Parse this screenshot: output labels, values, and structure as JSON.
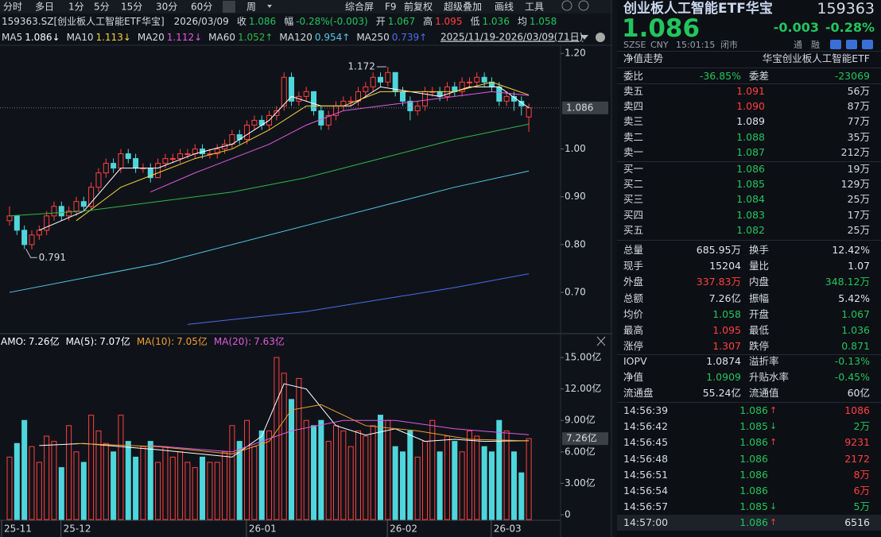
{
  "toolbar": {
    "periods": [
      "分时",
      "多日",
      "1分",
      "5分",
      "15分",
      "30分",
      "60分",
      "周"
    ],
    "tools": [
      "综合屏",
      "F9",
      "前复权",
      "超级叠加",
      "画线",
      "工具"
    ]
  },
  "header": {
    "code_name": "159363.SZ[创业板人工智能ETF华宝]",
    "date": "2026/03/09",
    "fields": [
      {
        "label": "收",
        "value": "1.086",
        "color": "#22c55e"
      },
      {
        "label": "幅",
        "value": "-0.28%(-0.003)",
        "color": "#22c55e"
      },
      {
        "label": "开",
        "value": "1.067",
        "color": "#22c55e"
      },
      {
        "label": "高",
        "value": "1.095",
        "color": "#ff4040"
      },
      {
        "label": "低",
        "value": "1.036",
        "color": "#22c55e"
      },
      {
        "label": "均",
        "value": "1.058",
        "color": "#22c55e"
      }
    ],
    "range_label": "2025/11/19-2026/03/09(71日)"
  },
  "kline": {
    "ylim": [
      0.617,
      1.212
    ],
    "yticks": [
      {
        "value": 0.7,
        "label": "0.70"
      },
      {
        "value": 0.8,
        "label": "0.80"
      },
      {
        "value": 0.9,
        "label": "0.90"
      },
      {
        "value": 1.0,
        "label": "1.00"
      },
      {
        "value": 1.2,
        "label": "1.20"
      }
    ],
    "candles": [
      [
        0.85,
        0.88,
        0.84,
        0.86
      ],
      [
        0.86,
        0.86,
        0.82,
        0.83
      ],
      [
        0.83,
        0.84,
        0.791,
        0.8
      ],
      [
        0.8,
        0.83,
        0.79,
        0.82
      ],
      [
        0.82,
        0.84,
        0.81,
        0.83
      ],
      [
        0.83,
        0.87,
        0.82,
        0.86
      ],
      [
        0.86,
        0.89,
        0.85,
        0.88
      ],
      [
        0.88,
        0.89,
        0.85,
        0.86
      ],
      [
        0.86,
        0.88,
        0.85,
        0.87
      ],
      [
        0.87,
        0.9,
        0.86,
        0.89
      ],
      [
        0.89,
        0.9,
        0.87,
        0.88
      ],
      [
        0.88,
        0.93,
        0.87,
        0.92
      ],
      [
        0.92,
        0.96,
        0.91,
        0.95
      ],
      [
        0.95,
        0.98,
        0.94,
        0.97
      ],
      [
        0.97,
        0.98,
        0.95,
        0.96
      ],
      [
        0.96,
        1.0,
        0.95,
        0.99
      ],
      [
        0.99,
        1.0,
        0.97,
        0.98
      ],
      [
        0.98,
        0.99,
        0.95,
        0.96
      ],
      [
        0.96,
        0.97,
        0.95,
        0.96
      ],
      [
        0.96,
        0.97,
        0.93,
        0.94
      ],
      [
        0.94,
        0.98,
        0.94,
        0.97
      ],
      [
        0.97,
        0.99,
        0.96,
        0.98
      ],
      [
        0.98,
        0.99,
        0.97,
        0.98
      ],
      [
        0.98,
        1.0,
        0.97,
        0.99
      ],
      [
        0.99,
        1.0,
        0.98,
        0.99
      ],
      [
        0.99,
        1.01,
        0.98,
        1.0
      ],
      [
        1.0,
        1.01,
        0.98,
        0.99
      ],
      [
        0.99,
        1.0,
        0.98,
        0.99
      ],
      [
        0.99,
        1.01,
        0.98,
        1.0
      ],
      [
        1.0,
        1.02,
        0.99,
        1.01
      ],
      [
        1.01,
        1.04,
        1.0,
        1.03
      ],
      [
        1.03,
        1.04,
        1.01,
        1.02
      ],
      [
        1.02,
        1.06,
        1.01,
        1.05
      ],
      [
        1.05,
        1.07,
        1.04,
        1.06
      ],
      [
        1.06,
        1.07,
        1.04,
        1.05
      ],
      [
        1.05,
        1.08,
        1.04,
        1.07
      ],
      [
        1.07,
        1.09,
        1.06,
        1.08
      ],
      [
        1.09,
        1.16,
        1.08,
        1.15
      ],
      [
        1.15,
        1.16,
        1.09,
        1.1
      ],
      [
        1.1,
        1.12,
        1.09,
        1.11
      ],
      [
        1.11,
        1.13,
        1.1,
        1.12
      ],
      [
        1.12,
        1.12,
        1.07,
        1.08
      ],
      [
        1.08,
        1.09,
        1.04,
        1.05
      ],
      [
        1.05,
        1.08,
        1.04,
        1.07
      ],
      [
        1.07,
        1.1,
        1.06,
        1.09
      ],
      [
        1.09,
        1.11,
        1.08,
        1.1
      ],
      [
        1.1,
        1.11,
        1.09,
        1.1
      ],
      [
        1.1,
        1.13,
        1.09,
        1.12
      ],
      [
        1.12,
        1.14,
        1.11,
        1.13
      ],
      [
        1.13,
        1.16,
        1.12,
        1.15
      ],
      [
        1.15,
        1.16,
        1.13,
        1.14
      ],
      [
        1.14,
        1.172,
        1.13,
        1.16
      ],
      [
        1.16,
        1.16,
        1.11,
        1.12
      ],
      [
        1.12,
        1.13,
        1.09,
        1.1
      ],
      [
        1.1,
        1.11,
        1.06,
        1.08
      ],
      [
        1.08,
        1.1,
        1.07,
        1.09
      ],
      [
        1.09,
        1.13,
        1.08,
        1.12
      ],
      [
        1.12,
        1.13,
        1.11,
        1.12
      ],
      [
        1.12,
        1.13,
        1.1,
        1.11
      ],
      [
        1.11,
        1.14,
        1.1,
        1.13
      ],
      [
        1.13,
        1.14,
        1.11,
        1.12
      ],
      [
        1.12,
        1.15,
        1.11,
        1.14
      ],
      [
        1.14,
        1.15,
        1.13,
        1.14
      ],
      [
        1.14,
        1.16,
        1.13,
        1.15
      ],
      [
        1.15,
        1.16,
        1.13,
        1.14
      ],
      [
        1.14,
        1.15,
        1.12,
        1.13
      ],
      [
        1.13,
        1.14,
        1.09,
        1.1
      ],
      [
        1.1,
        1.12,
        1.09,
        1.11
      ],
      [
        1.11,
        1.12,
        1.08,
        1.1
      ],
      [
        1.1,
        1.11,
        1.07,
        1.09
      ],
      [
        1.067,
        1.095,
        1.036,
        1.086
      ]
    ],
    "up_color": "#ff4040",
    "down_color": "#4fd6dc",
    "ma": [
      {
        "name": "MA5",
        "label": "1.086↓",
        "color": "#ffffff",
        "x": [
          4,
          10,
          15,
          20,
          25,
          30,
          35,
          38,
          42,
          46,
          50,
          54,
          58,
          62,
          66,
          70
        ],
        "values": [
          0.83,
          0.87,
          0.96,
          0.96,
          0.99,
          1.01,
          1.06,
          1.11,
          1.09,
          1.09,
          1.13,
          1.12,
          1.11,
          1.13,
          1.13,
          1.086
        ]
      },
      {
        "name": "MA10",
        "label": "1.113↓",
        "color": "#f5d33a",
        "x": [
          9,
          15,
          20,
          25,
          30,
          35,
          40,
          45,
          50,
          55,
          60,
          65,
          70
        ],
        "values": [
          0.85,
          0.92,
          0.95,
          0.98,
          1.0,
          1.04,
          1.09,
          1.09,
          1.12,
          1.12,
          1.12,
          1.14,
          1.113
        ]
      },
      {
        "name": "MA20",
        "label": "1.112↓",
        "color": "#e05ae0",
        "x": [
          19,
          25,
          30,
          35,
          40,
          45,
          50,
          55,
          60,
          65,
          70
        ],
        "values": [
          0.91,
          0.95,
          0.98,
          1.01,
          1.05,
          1.08,
          1.09,
          1.1,
          1.11,
          1.12,
          1.112
        ]
      },
      {
        "name": "MA60",
        "label": "1.052↑",
        "color": "#2fb84a",
        "x": [
          0,
          10,
          20,
          30,
          40,
          50,
          60,
          70
        ],
        "values": [
          0.86,
          0.87,
          0.89,
          0.91,
          0.94,
          0.98,
          1.02,
          1.052
        ]
      },
      {
        "name": "MA120",
        "label": "0.954↑",
        "color": "#55c8e8",
        "x": [
          0,
          20,
          40,
          60,
          70
        ],
        "values": [
          0.7,
          0.76,
          0.84,
          0.92,
          0.954
        ]
      },
      {
        "name": "MA250",
        "label": "0.739↑",
        "color": "#4a6df0",
        "x": [
          24,
          40,
          60,
          70
        ],
        "values": [
          0.633,
          0.66,
          0.71,
          0.739
        ]
      }
    ],
    "high_mark": [
      51,
      1
    ],
    "low_mark": [
      2,
      2
    ],
    "x_labels": [
      {
        "label": "25-11",
        "index": 0
      },
      {
        "label": "25-12",
        "index": 8
      },
      {
        "label": "26-01",
        "index": 33
      },
      {
        "label": "26-02",
        "index": 52
      },
      {
        "label": "26-03",
        "index": 66
      }
    ]
  },
  "volume": {
    "ylim": [
      0,
      15.76
    ],
    "yticks": [
      0,
      {
        "value": 3,
        "label": "3.00亿"
      },
      {
        "value": 6,
        "label": "6.00亿"
      },
      {
        "value": 9,
        "label": "9.00亿"
      },
      {
        "value": 12,
        "label": "12.00亿"
      },
      {
        "value": 15,
        "label": "15.00亿"
      }
    ],
    "values": [
      5.5,
      6.8,
      9.0,
      6.5,
      5.0,
      7.5,
      7.0,
      4.5,
      8.5,
      6.0,
      5.0,
      9.5,
      8.0,
      6.8,
      6.0,
      9.5,
      7.0,
      5.5,
      6.5,
      7.0,
      5.0,
      6.5,
      5.5,
      6.0,
      5.0,
      4.5,
      5.5,
      5.0,
      5.0,
      6.0,
      8.5,
      7.0,
      9.0,
      6.5,
      8.0,
      8.0,
      15.0,
      13.5,
      11.0,
      13.0,
      9.0,
      8.5,
      9.0,
      7.0,
      8.5,
      8.0,
      6.5,
      8.0,
      7.5,
      8.5,
      9.5,
      9.0,
      6.5,
      6.0,
      8.0,
      5.5,
      7.0,
      9.0,
      6.0,
      7.5,
      7.0,
      6.0,
      8.0,
      7.5,
      6.5,
      6.0,
      9.0,
      8.0,
      6.0,
      4.0,
      7.26
    ],
    "last_label": "7.26亿",
    "ma": [
      {
        "name": "AMO:",
        "label": "7.26亿",
        "color": "#ffffff"
      },
      {
        "name": "MA(5):",
        "label": "7.07亿",
        "color": "#ffffff",
        "x": [
          4,
          10,
          20,
          30,
          34,
          37,
          40,
          44,
          48,
          52,
          56,
          60,
          64,
          70
        ],
        "values": [
          6.6,
          6.8,
          6.2,
          5.5,
          7.5,
          12.5,
          12.0,
          8.5,
          7.6,
          8.2,
          7.0,
          7.2,
          7.0,
          7.07
        ]
      },
      {
        "name": "MA(10):",
        "label": "7.05亿",
        "color": "#f0a030",
        "x": [
          9,
          20,
          30,
          35,
          38,
          42,
          48,
          55,
          62,
          70
        ],
        "values": [
          6.8,
          6.5,
          5.8,
          7.0,
          10.0,
          10.5,
          8.5,
          8.0,
          7.2,
          7.05
        ]
      },
      {
        "name": "MA(20):",
        "label": "7.63亿",
        "color": "#e05ae0",
        "x": [
          19,
          30,
          38,
          45,
          52,
          60,
          70
        ],
        "values": [
          6.6,
          6.0,
          8.0,
          9.0,
          9.0,
          8.2,
          7.63
        ]
      }
    ]
  },
  "quote": {
    "name": "创业板人工智能ETF华宝",
    "code": "159363",
    "price": "1.086",
    "change": "-0.003",
    "change_pct": "-0.28%",
    "market": "SZSE",
    "currency": "CNY",
    "time": "15:01:15",
    "status": "闭市",
    "badges": [
      "通",
      "融"
    ],
    "nav_title": "净值走势",
    "fund_name": "华宝创业板人工智能ETF"
  },
  "order_ratio": [
    {
      "label": "委比",
      "value": "-36.85%",
      "color": "#22c55e"
    },
    {
      "label": "委差",
      "value": "-23069",
      "color": "#22c55e"
    }
  ],
  "asks": [
    {
      "label": "卖五",
      "price": "1.091",
      "volume": "56万",
      "color": "#ff4040"
    },
    {
      "label": "卖四",
      "price": "1.090",
      "volume": "87万",
      "color": "#ff4040"
    },
    {
      "label": "卖三",
      "price": "1.089",
      "volume": "77万",
      "color": "#dfe3ea"
    },
    {
      "label": "卖二",
      "price": "1.088",
      "volume": "35万",
      "color": "#22c55e"
    },
    {
      "label": "卖一",
      "price": "1.087",
      "volume": "212万",
      "color": "#22c55e"
    }
  ],
  "bids": [
    {
      "label": "买一",
      "price": "1.086",
      "volume": "19万",
      "color": "#22c55e"
    },
    {
      "label": "买二",
      "price": "1.085",
      "volume": "129万",
      "color": "#22c55e"
    },
    {
      "label": "买三",
      "price": "1.084",
      "volume": "25万",
      "color": "#22c55e"
    },
    {
      "label": "买四",
      "price": "1.083",
      "volume": "17万",
      "color": "#22c55e"
    },
    {
      "label": "买五",
      "price": "1.082",
      "volume": "25万",
      "color": "#22c55e"
    }
  ],
  "stats": [
    [
      {
        "label": "总量",
        "value": "685.95万",
        "color": "#dfe3ea"
      },
      {
        "label": "换手",
        "value": "12.42%",
        "color": "#dfe3ea"
      }
    ],
    [
      {
        "label": "现手",
        "value": "15204",
        "color": "#dfe3ea"
      },
      {
        "label": "量比",
        "value": "1.07",
        "color": "#dfe3ea"
      }
    ],
    [
      {
        "label": "外盘",
        "value": "337.83万",
        "color": "#ff4040"
      },
      {
        "label": "内盘",
        "value": "348.12万",
        "color": "#22c55e"
      }
    ],
    [
      {
        "label": "总额",
        "value": "7.26亿",
        "color": "#dfe3ea"
      },
      {
        "label": "振幅",
        "value": "5.42%",
        "color": "#dfe3ea"
      }
    ],
    [
      {
        "label": "均价",
        "value": "1.058",
        "color": "#22c55e"
      },
      {
        "label": "开盘",
        "value": "1.067",
        "color": "#22c55e"
      }
    ],
    [
      {
        "label": "最高",
        "value": "1.095",
        "color": "#ff4040"
      },
      {
        "label": "最低",
        "value": "1.036",
        "color": "#22c55e"
      }
    ],
    [
      {
        "label": "涨停",
        "value": "1.307",
        "color": "#ff4040"
      },
      {
        "label": "跌停",
        "value": "0.871",
        "color": "#22c55e"
      }
    ]
  ],
  "fund_stats": [
    [
      {
        "label": "IOPV",
        "value": "1.0874",
        "color": "#dfe3ea"
      },
      {
        "label": "溢折率",
        "value": "-0.13%",
        "color": "#22c55e"
      }
    ],
    [
      {
        "label": "净值",
        "value": "1.0909",
        "color": "#22c55e"
      },
      {
        "label": "升贴水率",
        "value": "-0.45%",
        "color": "#22c55e"
      }
    ],
    [
      {
        "label": "流通盘",
        "value": "55.24亿",
        "color": "#dfe3ea"
      },
      {
        "label": "流通值",
        "value": "60亿",
        "color": "#dfe3ea"
      }
    ]
  ],
  "trades": [
    {
      "time": "14:56:39",
      "price": "1.086",
      "arrow": "↑",
      "arrow_color": "#ff4040",
      "volume": "1086",
      "volume_color": "#ff4040"
    },
    {
      "time": "14:56:42",
      "price": "1.085",
      "arrow": "↓",
      "arrow_color": "#22c55e",
      "volume": "2万",
      "volume_color": "#22c55e"
    },
    {
      "time": "14:56:45",
      "price": "1.086",
      "arrow": "↑",
      "arrow_color": "#ff4040",
      "volume": "9231",
      "volume_color": "#ff4040"
    },
    {
      "time": "14:56:48",
      "price": "1.086",
      "volume": "2172",
      "volume_color": "#ff4040"
    },
    {
      "time": "14:56:51",
      "price": "1.086",
      "volume": "8万",
      "volume_color": "#ff4040"
    },
    {
      "time": "14:56:54",
      "price": "1.086",
      "volume": "6万",
      "volume_color": "#ff4040"
    },
    {
      "time": "14:56:57",
      "price": "1.085",
      "arrow": "↓",
      "arrow_color": "#22c55e",
      "volume": "5万",
      "volume_color": "#22c55e"
    },
    {
      "time": "14:57:00",
      "price": "1.086",
      "arrow": "↑",
      "arrow_color": "#ff4040",
      "volume": "6516",
      "volume_color": "#dfe3ea"
    }
  ]
}
